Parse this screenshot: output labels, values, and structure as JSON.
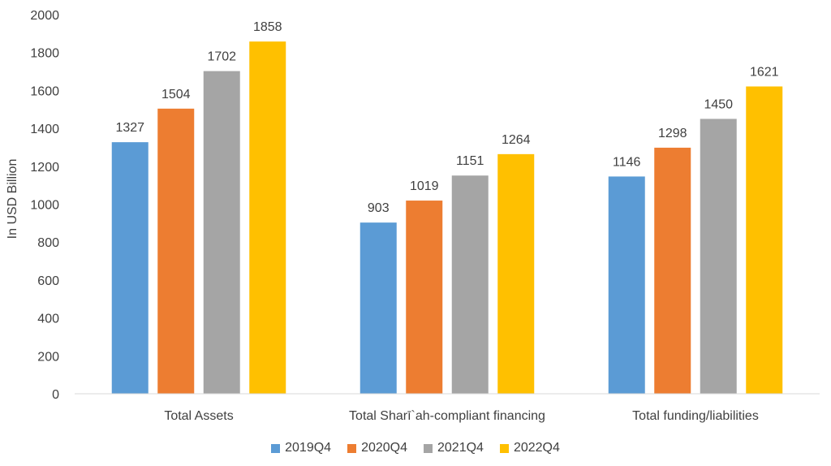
{
  "chart_data": {
    "type": "bar",
    "categories": [
      "Total Assets",
      "Total Sharī`ah-compliant financing",
      "Total funding/liabilities"
    ],
    "series": [
      {
        "name": "2019Q4",
        "color": "#5B9BD5",
        "values": [
          1327,
          903,
          1146
        ]
      },
      {
        "name": "2020Q4",
        "color": "#ED7D31",
        "values": [
          1504,
          1019,
          1298
        ]
      },
      {
        "name": "2021Q4",
        "color": "#A5A5A5",
        "values": [
          1702,
          1151,
          1450
        ]
      },
      {
        "name": "2022Q4",
        "color": "#FFC000",
        "values": [
          1858,
          1264,
          1621
        ]
      }
    ],
    "ylabel": "In USD Billion",
    "ylim": [
      0,
      2000
    ],
    "yticks": [
      0,
      200,
      400,
      600,
      800,
      1000,
      1200,
      1400,
      1600,
      1800,
      2000
    ],
    "grid": false,
    "legend_position": "bottom",
    "data_labels": true
  }
}
